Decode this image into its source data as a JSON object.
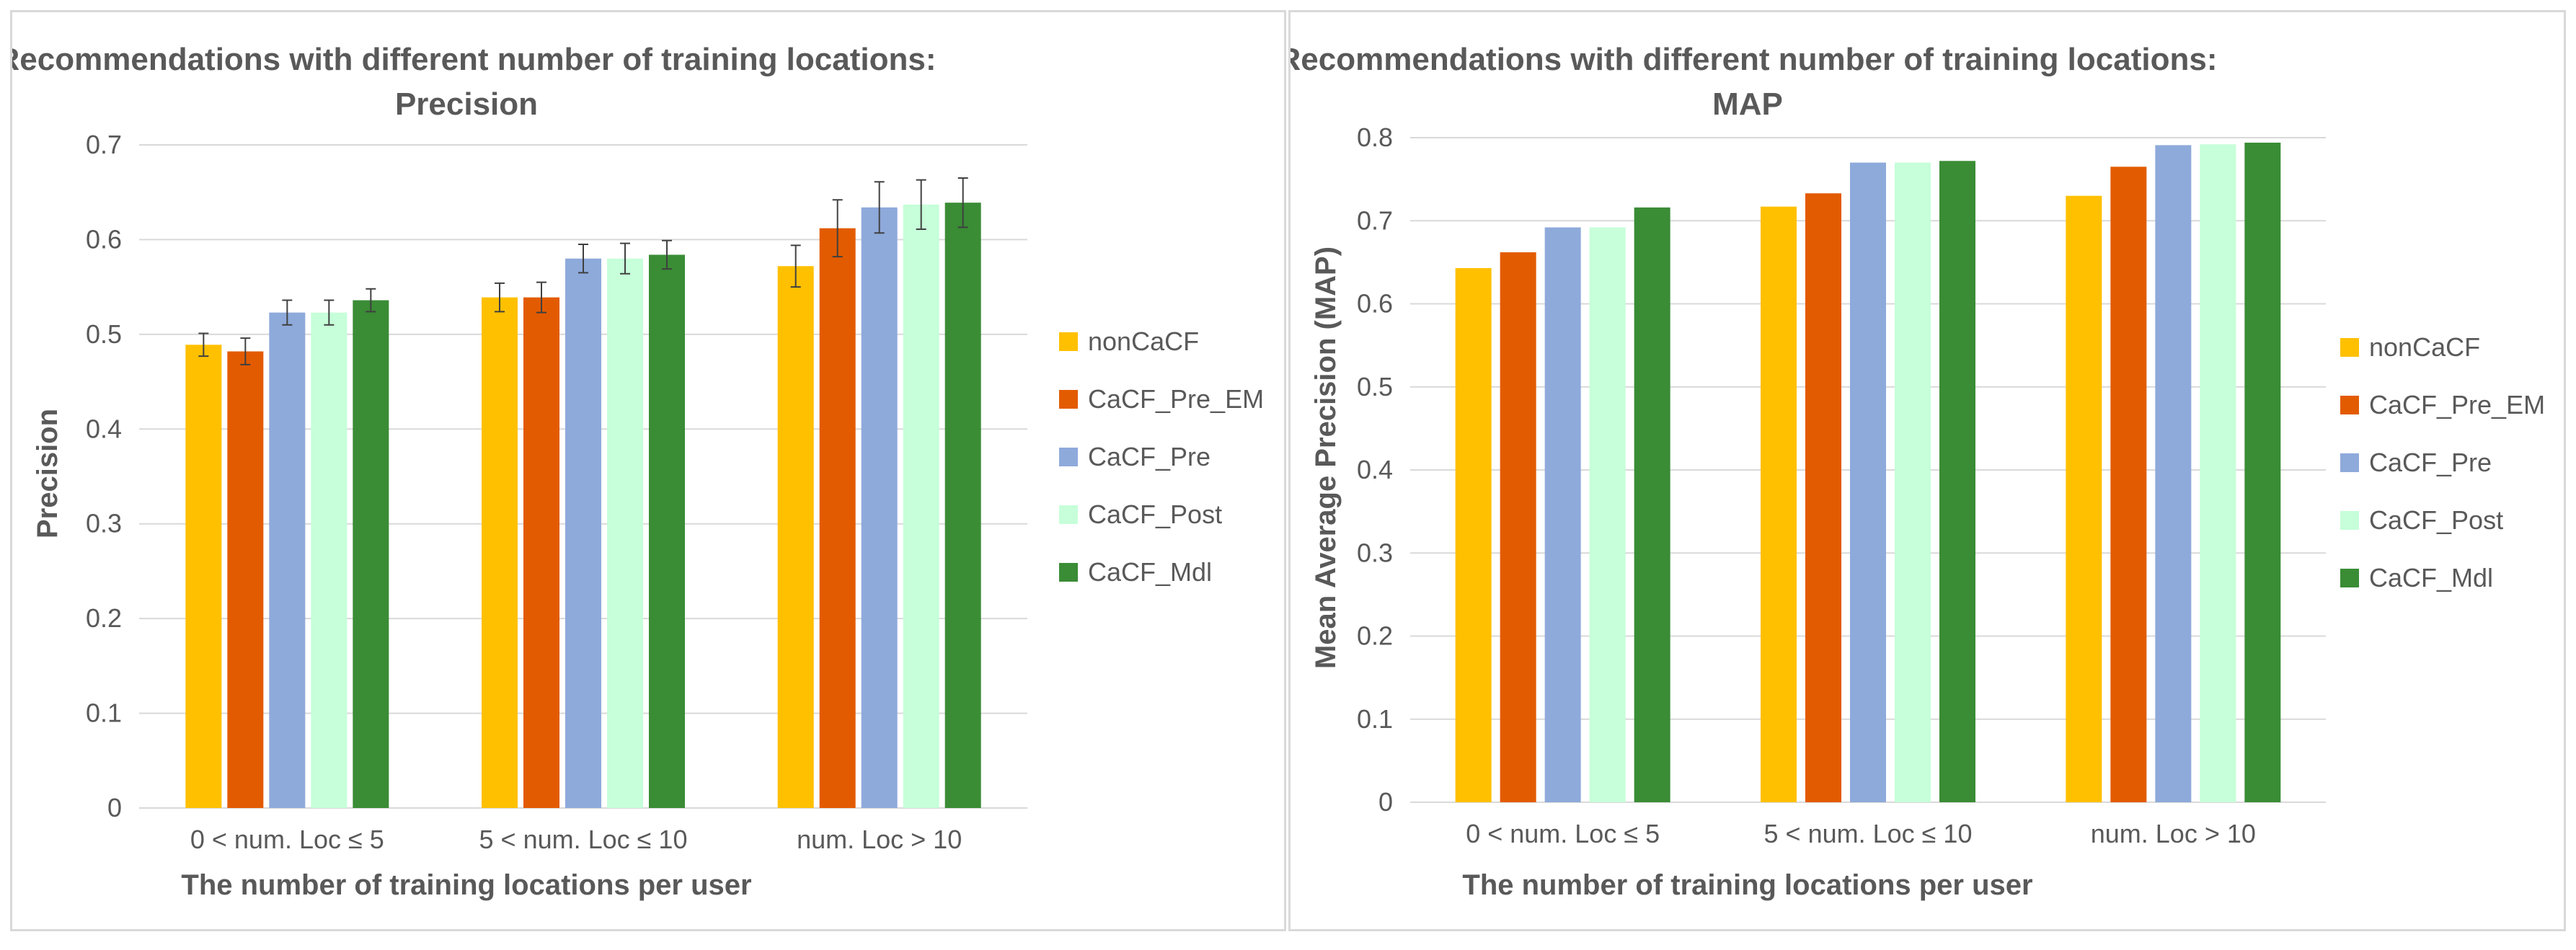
{
  "chart_data": [
    {
      "type": "bar",
      "title": "Recommendations with different number of training locations:",
      "subtitle": "Precision",
      "xlabel": "The number of training locations per user",
      "ylabel": "Precision",
      "ylim": [
        0,
        0.7
      ],
      "yticks": [
        0,
        0.1,
        0.2,
        0.3,
        0.4,
        0.5,
        0.6,
        0.7
      ],
      "ytick_labels": [
        "0",
        "0.1",
        "0.2",
        "0.3",
        "0.4",
        "0.5",
        "0.6",
        "0.7"
      ],
      "grid": true,
      "error_bars": true,
      "legend_position": "right",
      "categories": [
        "0 < num. Loc ≤ 5",
        "5 < num. Loc ≤ 10",
        "num. Loc > 10"
      ],
      "series": [
        {
          "name": "nonCaCF",
          "color": "#FFC000",
          "values": [
            0.489,
            0.539,
            0.572
          ],
          "errors": [
            0.012,
            0.015,
            0.022
          ]
        },
        {
          "name": "CaCF_Pre_EM",
          "color": "#E35B00",
          "values": [
            0.482,
            0.539,
            0.612
          ],
          "errors": [
            0.014,
            0.016,
            0.03
          ]
        },
        {
          "name": "CaCF_Pre",
          "color": "#8EAADB",
          "values": [
            0.523,
            0.58,
            0.634
          ],
          "errors": [
            0.013,
            0.015,
            0.027
          ]
        },
        {
          "name": "CaCF_Post",
          "color": "#C6FFD9",
          "values": [
            0.523,
            0.58,
            0.637
          ],
          "errors": [
            0.013,
            0.016,
            0.026
          ]
        },
        {
          "name": "CaCF_Mdl",
          "color": "#3A8C35",
          "values": [
            0.536,
            0.584,
            0.639
          ],
          "errors": [
            0.012,
            0.015,
            0.026
          ]
        }
      ]
    },
    {
      "type": "bar",
      "title": "Recommendations with different number of training locations:",
      "subtitle": "MAP",
      "xlabel": "The number of training locations per user",
      "ylabel": "Mean Average Precision (MAP)",
      "ylim": [
        0,
        0.8
      ],
      "yticks": [
        0,
        0.1,
        0.2,
        0.3,
        0.4,
        0.5,
        0.6,
        0.7,
        0.8
      ],
      "ytick_labels": [
        "0",
        "0.1",
        "0.2",
        "0.3",
        "0.4",
        "0.5",
        "0.6",
        "0.7",
        "0.8"
      ],
      "grid": true,
      "error_bars": false,
      "legend_position": "right",
      "categories": [
        "0 < num. Loc ≤ 5",
        "5 < num. Loc ≤ 10",
        "num. Loc > 10"
      ],
      "series": [
        {
          "name": "nonCaCF",
          "color": "#FFC000",
          "values": [
            0.643,
            0.717,
            0.73
          ]
        },
        {
          "name": "CaCF_Pre_EM",
          "color": "#E35B00",
          "values": [
            0.662,
            0.733,
            0.765
          ]
        },
        {
          "name": "CaCF_Pre",
          "color": "#8EAADB",
          "values": [
            0.692,
            0.77,
            0.791
          ]
        },
        {
          "name": "CaCF_Post",
          "color": "#C6FFD9",
          "values": [
            0.692,
            0.77,
            0.792
          ]
        },
        {
          "name": "CaCF_Mdl",
          "color": "#3A8C35",
          "values": [
            0.716,
            0.772,
            0.794
          ]
        }
      ]
    }
  ]
}
